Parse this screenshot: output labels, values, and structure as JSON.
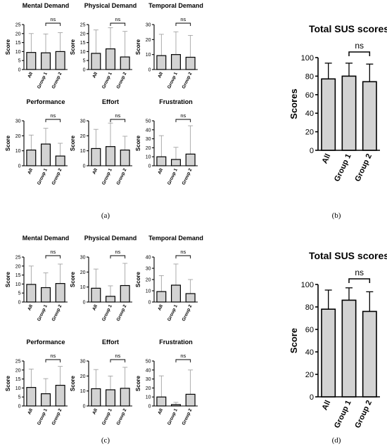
{
  "panel_labels": [
    "(a)",
    "(b)",
    "(c)",
    "(d)"
  ],
  "chart_data": [
    {
      "type": "bar",
      "panel": "a",
      "title": "Mental Demand",
      "ylabel": "Score",
      "categories": [
        "All",
        "Group 1",
        "Group 2"
      ],
      "values": [
        9.5,
        9.3,
        10
      ],
      "errors": [
        10.5,
        10.5,
        10.5
      ],
      "ylim": [
        0,
        25
      ],
      "yticks": [
        0,
        5,
        10,
        15,
        20,
        25
      ],
      "annotation": "ns",
      "bracket": [
        1,
        2
      ]
    },
    {
      "type": "bar",
      "panel": "a",
      "title": "Physical Demand",
      "ylabel": "Score",
      "categories": [
        "All",
        "Group 1",
        "Group 2"
      ],
      "values": [
        9,
        11.5,
        7
      ],
      "errors": [
        13,
        11.8,
        14.2
      ],
      "ylim": [
        0,
        25
      ],
      "yticks": [
        0,
        5,
        10,
        15,
        20,
        25
      ],
      "annotation": "ns",
      "bracket": [
        1,
        2
      ]
    },
    {
      "type": "bar",
      "panel": "a",
      "title": "Temporal Demand",
      "ylabel": "Score",
      "categories": [
        "All",
        "Group 1",
        "Group 2"
      ],
      "values": [
        9.3,
        10,
        8.2
      ],
      "errors": [
        14.2,
        15.2,
        14.6
      ],
      "ylim": [
        0,
        30
      ],
      "yticks": [
        0,
        10,
        20,
        30
      ],
      "annotation": "ns",
      "bracket": [
        1,
        2
      ]
    },
    {
      "type": "bar",
      "panel": "a",
      "title": "Performance",
      "ylabel": "Score",
      "categories": [
        "All",
        "Group 1",
        "Group 2"
      ],
      "values": [
        10.5,
        14.5,
        6.5
      ],
      "errors": [
        10,
        10.5,
        8.5
      ],
      "ylim": [
        0,
        30
      ],
      "yticks": [
        0,
        10,
        20,
        30
      ],
      "annotation": "ns",
      "bracket": [
        1,
        2
      ]
    },
    {
      "type": "bar",
      "panel": "a",
      "title": "Effort",
      "ylabel": "Score",
      "categories": [
        "All",
        "Group 1",
        "Group 2"
      ],
      "values": [
        11.5,
        12.8,
        10.5
      ],
      "errors": [
        12.8,
        15.7,
        9.2
      ],
      "ylim": [
        0,
        30
      ],
      "yticks": [
        0,
        10,
        20,
        30
      ],
      "annotation": "ns",
      "bracket": [
        1,
        2
      ]
    },
    {
      "type": "bar",
      "panel": "a",
      "title": "Frustration",
      "ylabel": "Score",
      "categories": [
        "All",
        "Group 1",
        "Group 2"
      ],
      "values": [
        10,
        7,
        13
      ],
      "errors": [
        23.5,
        13.5,
        31.5
      ],
      "ylim": [
        0,
        50
      ],
      "yticks": [
        0,
        10,
        20,
        30,
        40,
        50
      ],
      "annotation": "ns",
      "bracket": [
        1,
        2
      ]
    },
    {
      "type": "bar",
      "panel": "b",
      "title": "Total SUS scores",
      "ylabel": "Scores",
      "categories": [
        "All",
        "Group 1",
        "Group 2"
      ],
      "values": [
        77,
        80,
        74
      ],
      "errors": [
        17,
        14,
        19
      ],
      "ylim": [
        0,
        100
      ],
      "yticks": [
        0,
        20,
        40,
        60,
        80,
        100
      ],
      "annotation": "ns",
      "bracket": [
        1,
        2
      ]
    },
    {
      "type": "bar",
      "panel": "c",
      "title": "Mental Demand",
      "ylabel": "Score",
      "categories": [
        "All",
        "Group 1",
        "Group 2"
      ],
      "values": [
        9.8,
        8,
        10.3
      ],
      "errors": [
        10.2,
        8.2,
        10.8
      ],
      "ylim": [
        0,
        25
      ],
      "yticks": [
        0,
        5,
        10,
        15,
        20,
        25
      ],
      "annotation": "ns",
      "bracket": [
        1,
        2
      ]
    },
    {
      "type": "bar",
      "panel": "c",
      "title": "Physical Demand",
      "ylabel": "Score",
      "categories": [
        "All",
        "Group 1",
        "Group 2"
      ],
      "values": [
        9.2,
        3.8,
        11
      ],
      "errors": [
        12.8,
        7,
        14.8
      ],
      "ylim": [
        0,
        30
      ],
      "yticks": [
        0,
        10,
        20,
        30
      ],
      "annotation": "ns",
      "bracket": [
        1,
        2
      ]
    },
    {
      "type": "bar",
      "panel": "c",
      "title": "Temporal Demand",
      "ylabel": "Score",
      "categories": [
        "All",
        "Group 1",
        "Group 2"
      ],
      "values": [
        9.3,
        15,
        7.5
      ],
      "errors": [
        14.2,
        18.8,
        12.5
      ],
      "ylim": [
        0,
        40
      ],
      "yticks": [
        0,
        10,
        20,
        30,
        40
      ],
      "annotation": "ns",
      "bracket": [
        1,
        2
      ]
    },
    {
      "type": "bar",
      "panel": "c",
      "title": "Performance",
      "ylabel": "Score",
      "categories": [
        "All",
        "Group 1",
        "Group 2"
      ],
      "values": [
        10.3,
        6.8,
        11.5
      ],
      "errors": [
        10.2,
        8.4,
        10.5
      ],
      "ylim": [
        0,
        25
      ],
      "yticks": [
        0,
        5,
        10,
        15,
        20,
        25
      ],
      "annotation": "ns",
      "bracket": [
        1,
        2
      ]
    },
    {
      "type": "bar",
      "panel": "c",
      "title": "Effort",
      "ylabel": "Score",
      "categories": [
        "All",
        "Group 1",
        "Group 2"
      ],
      "values": [
        11.5,
        10.8,
        11.8
      ],
      "errors": [
        12.8,
        9.2,
        14
      ],
      "ylim": [
        0,
        30
      ],
      "yticks": [
        0,
        10,
        20,
        30
      ],
      "annotation": "ns",
      "bracket": [
        1,
        2
      ]
    },
    {
      "type": "bar",
      "panel": "c",
      "title": "Frustration",
      "ylabel": "Score",
      "categories": [
        "All",
        "Group 1",
        "Group 2"
      ],
      "values": [
        10,
        1.5,
        13
      ],
      "errors": [
        23.5,
        2.5,
        27
      ],
      "ylim": [
        0,
        50
      ],
      "yticks": [
        0,
        10,
        20,
        30,
        40,
        50
      ],
      "annotation": "ns",
      "bracket": [
        1,
        2
      ]
    },
    {
      "type": "bar",
      "panel": "d",
      "title": "Total SUS scores",
      "ylabel": "Score",
      "categories": [
        "All",
        "Group 1",
        "Group 2"
      ],
      "values": [
        78,
        86,
        76
      ],
      "errors": [
        17,
        11,
        17.5
      ],
      "ylim": [
        0,
        100
      ],
      "yticks": [
        0,
        20,
        40,
        60,
        80,
        100
      ],
      "annotation": "ns",
      "bracket": [
        1,
        2
      ]
    }
  ]
}
